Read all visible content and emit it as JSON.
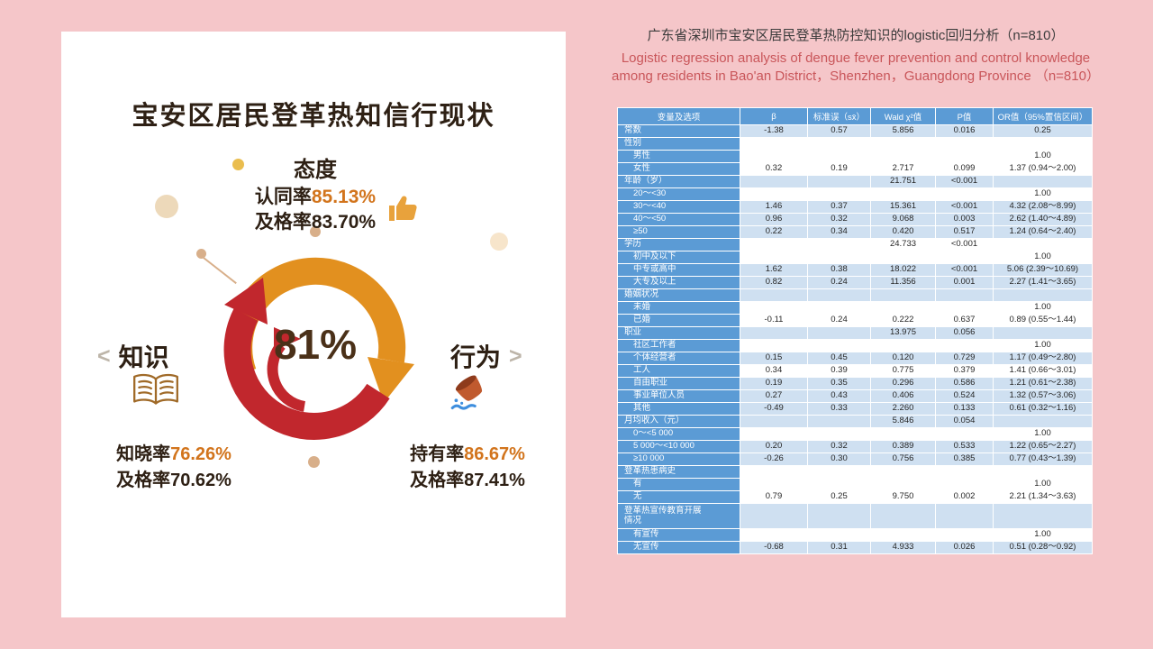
{
  "infographic": {
    "title": "宝安区居民登革热知信行现状",
    "center_value": "81%",
    "attitude": {
      "label": "态度",
      "rate_prefix": "认同率",
      "rate_value": "85.13%",
      "pass_line": "及格率83.70%"
    },
    "knowledge": {
      "label": "知识",
      "chevron": "<",
      "rate_prefix": "知晓率",
      "rate_value": "76.26%",
      "pass_line": "及格率70.62%"
    },
    "behavior": {
      "label": "行为",
      "chevron": ">",
      "rate_prefix": "持有率",
      "rate_value": "86.67%",
      "pass_line": "及格率87.41%"
    },
    "icons": {
      "attitude": "thumbs-up-icon",
      "knowledge": "open-book-icon",
      "behavior": "pouring-pot-icon"
    },
    "colors": {
      "accent_orange": "#D2741C",
      "arrow_orange": "#E2901F",
      "arrow_red": "#C1272D",
      "dark_text": "#2E2014"
    }
  },
  "analysis": {
    "title_zh": "广东省深圳市宝安区居民登革热防控知识的logistic回归分析（n=810）",
    "title_en": "Logistic regression analysis of dengue fever prevention and control knowledge among residents in Bao'an District，Shenzhen，Guangdong Province （n=810）",
    "table": {
      "headers": [
        "变量及选项",
        "β",
        "标准误（sx̄）",
        "Wald χ²值",
        "P值",
        "OR值（95%置信区间）"
      ],
      "rows": [
        {
          "label": "常数",
          "indent": false,
          "shaded": true,
          "cells": [
            "-1.38",
            "0.57",
            "5.856",
            "0.016",
            "0.25"
          ]
        },
        {
          "label": "性别",
          "indent": false,
          "shaded": false,
          "cells": [
            "",
            "",
            "",
            "",
            ""
          ]
        },
        {
          "label": "男性",
          "indent": true,
          "shaded": false,
          "cells": [
            "",
            "",
            "",
            "",
            "1.00"
          ]
        },
        {
          "label": "女性",
          "indent": true,
          "shaded": false,
          "cells": [
            "0.32",
            "0.19",
            "2.717",
            "0.099",
            "1.37 (0.94～2.00)"
          ]
        },
        {
          "label": "年龄（岁）",
          "indent": false,
          "shaded": true,
          "cells": [
            "",
            "",
            "21.751",
            "<0.001",
            ""
          ]
        },
        {
          "label": "20～<30",
          "indent": true,
          "shaded": false,
          "cells": [
            "",
            "",
            "",
            "",
            "1.00"
          ]
        },
        {
          "label": "30～<40",
          "indent": true,
          "shaded": true,
          "cells": [
            "1.46",
            "0.37",
            "15.361",
            "<0.001",
            "4.32 (2.08～8.99)"
          ]
        },
        {
          "label": "40～<50",
          "indent": true,
          "shaded": true,
          "cells": [
            "0.96",
            "0.32",
            "9.068",
            "0.003",
            "2.62 (1.40～4.89)"
          ]
        },
        {
          "label": "≥50",
          "indent": true,
          "shaded": true,
          "cells": [
            "0.22",
            "0.34",
            "0.420",
            "0.517",
            "1.24 (0.64～2.40)"
          ]
        },
        {
          "label": "学历",
          "indent": false,
          "shaded": false,
          "cells": [
            "",
            "",
            "24.733",
            "<0.001",
            ""
          ]
        },
        {
          "label": "初中及以下",
          "indent": true,
          "shaded": false,
          "cells": [
            "",
            "",
            "",
            "",
            "1.00"
          ]
        },
        {
          "label": "中专或高中",
          "indent": true,
          "shaded": true,
          "cells": [
            "1.62",
            "0.38",
            "18.022",
            "<0.001",
            "5.06 (2.39～10.69)"
          ]
        },
        {
          "label": "大专及以上",
          "indent": true,
          "shaded": true,
          "cells": [
            "0.82",
            "0.24",
            "11.356",
            "0.001",
            "2.27 (1.41～3.65)"
          ]
        },
        {
          "label": "婚姻状况",
          "indent": false,
          "shaded": true,
          "cells": [
            "",
            "",
            "",
            "",
            ""
          ]
        },
        {
          "label": "未婚",
          "indent": true,
          "shaded": false,
          "cells": [
            "",
            "",
            "",
            "",
            "1.00"
          ]
        },
        {
          "label": "已婚",
          "indent": true,
          "shaded": false,
          "cells": [
            "-0.11",
            "0.24",
            "0.222",
            "0.637",
            "0.89 (0.55～1.44)"
          ]
        },
        {
          "label": "职业",
          "indent": false,
          "shaded": true,
          "cells": [
            "",
            "",
            "13.975",
            "0.056",
            ""
          ]
        },
        {
          "label": "社区工作者",
          "indent": true,
          "shaded": false,
          "cells": [
            "",
            "",
            "",
            "",
            "1.00"
          ]
        },
        {
          "label": "个体经营者",
          "indent": true,
          "shaded": true,
          "cells": [
            "0.15",
            "0.45",
            "0.120",
            "0.729",
            "1.17 (0.49～2.80)"
          ]
        },
        {
          "label": "工人",
          "indent": true,
          "shaded": false,
          "cells": [
            "0.34",
            "0.39",
            "0.775",
            "0.379",
            "1.41 (0.66～3.01)"
          ]
        },
        {
          "label": "自由职业",
          "indent": true,
          "shaded": true,
          "cells": [
            "0.19",
            "0.35",
            "0.296",
            "0.586",
            "1.21 (0.61～2.38)"
          ]
        },
        {
          "label": "事业单位人员",
          "indent": true,
          "shaded": true,
          "cells": [
            "0.27",
            "0.43",
            "0.406",
            "0.524",
            "1.32 (0.57～3.06)"
          ]
        },
        {
          "label": "其他",
          "indent": true,
          "shaded": true,
          "cells": [
            "-0.49",
            "0.33",
            "2.260",
            "0.133",
            "0.61 (0.32～1.16)"
          ]
        },
        {
          "label": "月均收入（元）",
          "indent": false,
          "shaded": true,
          "cells": [
            "",
            "",
            "5.846",
            "0.054",
            ""
          ]
        },
        {
          "label": "0～<5 000",
          "indent": true,
          "shaded": false,
          "cells": [
            "",
            "",
            "",
            "",
            "1.00"
          ]
        },
        {
          "label": "5 000～<10 000",
          "indent": true,
          "shaded": true,
          "cells": [
            "0.20",
            "0.32",
            "0.389",
            "0.533",
            "1.22 (0.65～2.27)"
          ]
        },
        {
          "label": "≥10 000",
          "indent": true,
          "shaded": true,
          "cells": [
            "-0.26",
            "0.30",
            "0.756",
            "0.385",
            "0.77 (0.43～1.39)"
          ]
        },
        {
          "label": "登革热患病史",
          "indent": false,
          "shaded": false,
          "cells": [
            "",
            "",
            "",
            "",
            ""
          ]
        },
        {
          "label": "有",
          "indent": true,
          "shaded": false,
          "cells": [
            "",
            "",
            "",
            "",
            "1.00"
          ]
        },
        {
          "label": "无",
          "indent": true,
          "shaded": false,
          "cells": [
            "0.79",
            "0.25",
            "9.750",
            "0.002",
            "2.21 (1.34～3.63)"
          ]
        },
        {
          "label": "登革热宣传教育开展情况",
          "indent": false,
          "shaded": true,
          "tall": true,
          "cells": [
            "",
            "",
            "",
            "",
            ""
          ]
        },
        {
          "label": "有宣传",
          "indent": true,
          "shaded": false,
          "cells": [
            "",
            "",
            "",
            "",
            "1.00"
          ]
        },
        {
          "label": "无宣传",
          "indent": true,
          "shaded": true,
          "cells": [
            "-0.68",
            "0.31",
            "4.933",
            "0.026",
            "0.51 (0.28～0.92)"
          ]
        }
      ]
    }
  }
}
